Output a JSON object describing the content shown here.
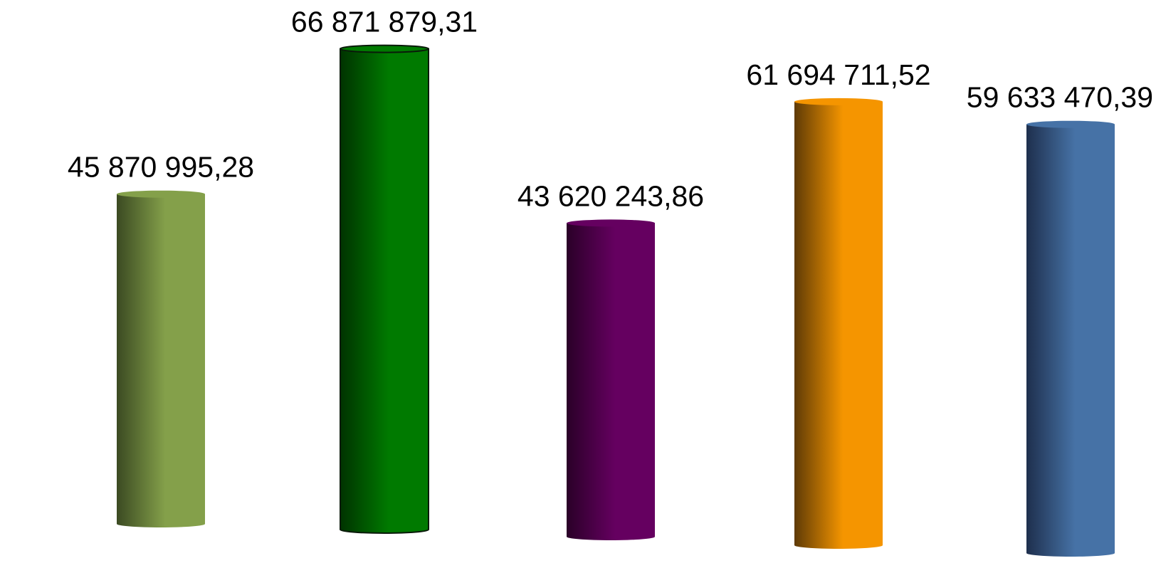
{
  "chart_data": {
    "type": "bar",
    "style": "3d-cylinder",
    "title": "",
    "xlabel": "",
    "ylabel": "",
    "grid": false,
    "legend": "none",
    "ylim": [
      0,
      70000000
    ],
    "values": [
      45870995.28,
      66871879.31,
      43620243.86,
      61694711.52,
      59633470.39
    ],
    "value_labels": [
      "45 870 995,28",
      "66 871 879,31",
      "43 620 243,86",
      "61 694 711,52",
      "59 633 470,39"
    ],
    "colors": [
      {
        "dark": "#3b4a22",
        "light": "#84a04a"
      },
      {
        "dark": "#003300",
        "light": "#007a00"
      },
      {
        "dark": "#2a0028",
        "light": "#650060"
      },
      {
        "dark": "#5e3a06",
        "light": "#f59500"
      },
      {
        "dark": "#1e2f4d",
        "light": "#4672a6"
      }
    ]
  }
}
